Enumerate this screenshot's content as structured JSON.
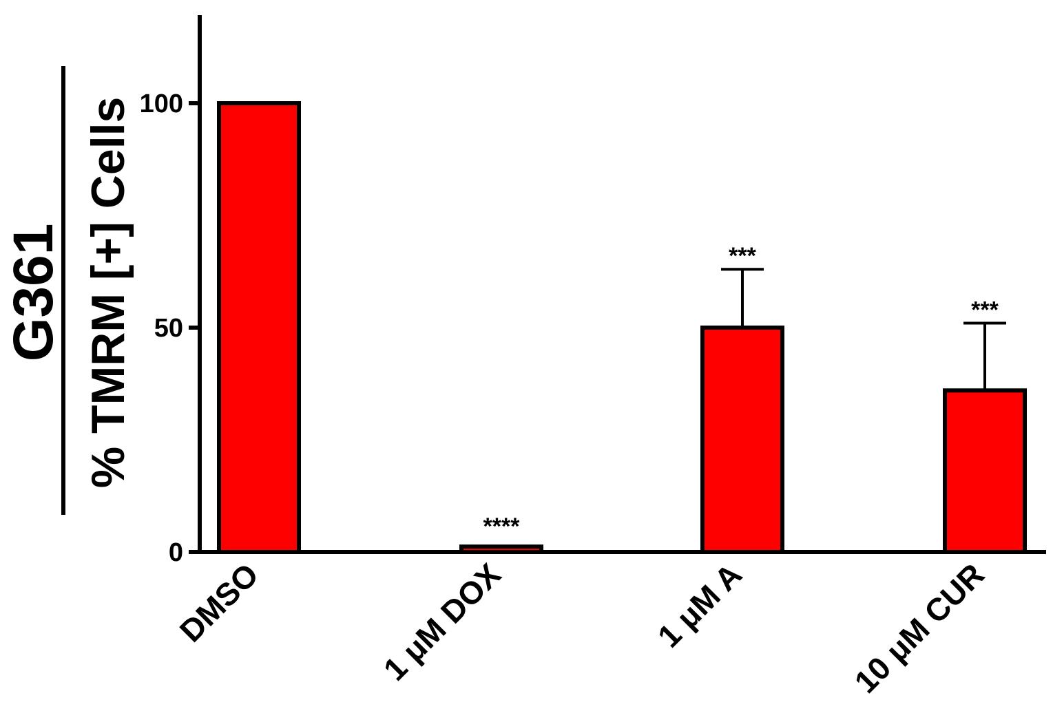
{
  "chart_data": {
    "type": "bar",
    "ylabel_top": "G361",
    "ylabel_bottom": "% TMRM [+] Cells",
    "ylim": [
      0,
      120
    ],
    "yticks": [
      0,
      50,
      100
    ],
    "ytick_labels": [
      "0",
      "50",
      "100"
    ],
    "categories": [
      "DMSO",
      "1 μM DOX",
      "1 μM A",
      "10 μM CUR"
    ],
    "values": [
      100,
      1.2,
      50,
      36
    ],
    "errors": [
      0,
      0.3,
      13,
      15
    ],
    "significance": [
      "",
      "****",
      "***",
      "***"
    ],
    "bar_color": "#ff0000",
    "grid": false,
    "legend": "none"
  }
}
